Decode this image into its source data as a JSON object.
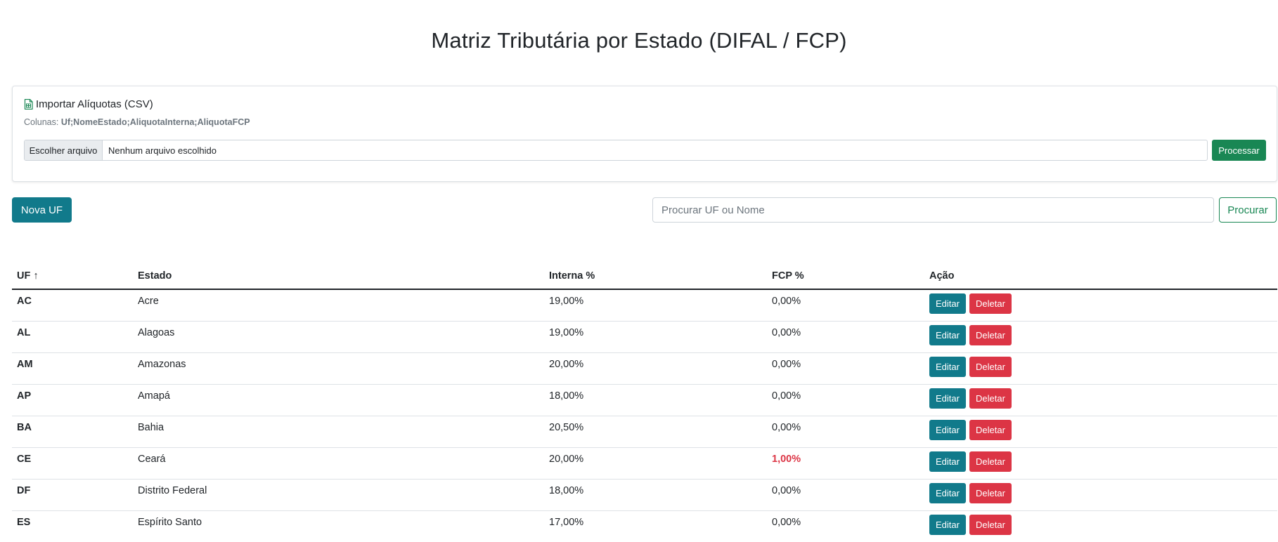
{
  "page": {
    "title": "Matriz Tributária por Estado (DIFAL / FCP)"
  },
  "import": {
    "title": "Importar Alíquotas (CSV)",
    "columns_label": "Colunas:",
    "columns_value": "Uf;NomeEstado;AliquotaInterna;AliquotaFCP",
    "choose_label": "Escolher arquivo",
    "file_status": "Nenhum arquivo escolhido",
    "process_label": "Processar",
    "icon": "file-csv-icon"
  },
  "toolbar": {
    "new_label": "Nova UF",
    "search_placeholder": "Procurar UF ou Nome",
    "search_label": "Procurar"
  },
  "table": {
    "headers": {
      "uf": "UF ↑",
      "estado": "Estado",
      "interna": "Interna %",
      "fcp": "FCP %",
      "acao": "Ação"
    },
    "edit_label": "Editar",
    "delete_label": "Deletar",
    "rows": [
      {
        "uf": "AC",
        "estado": "Acre",
        "interna": "19,00%",
        "fcp": "0,00%"
      },
      {
        "uf": "AL",
        "estado": "Alagoas",
        "interna": "19,00%",
        "fcp": "0,00%"
      },
      {
        "uf": "AM",
        "estado": "Amazonas",
        "interna": "20,00%",
        "fcp": "0,00%"
      },
      {
        "uf": "AP",
        "estado": "Amapá",
        "interna": "18,00%",
        "fcp": "0,00%"
      },
      {
        "uf": "BA",
        "estado": "Bahia",
        "interna": "20,50%",
        "fcp": "0,00%"
      },
      {
        "uf": "CE",
        "estado": "Ceará",
        "interna": "20,00%",
        "fcp": "1,00%",
        "fcp_highlight": true
      },
      {
        "uf": "DF",
        "estado": "Distrito Federal",
        "interna": "18,00%",
        "fcp": "0,00%"
      },
      {
        "uf": "ES",
        "estado": "Espírito Santo",
        "interna": "17,00%",
        "fcp": "0,00%"
      }
    ]
  },
  "colors": {
    "primary": "#117a8b",
    "success": "#198754",
    "danger": "#dc3545"
  }
}
